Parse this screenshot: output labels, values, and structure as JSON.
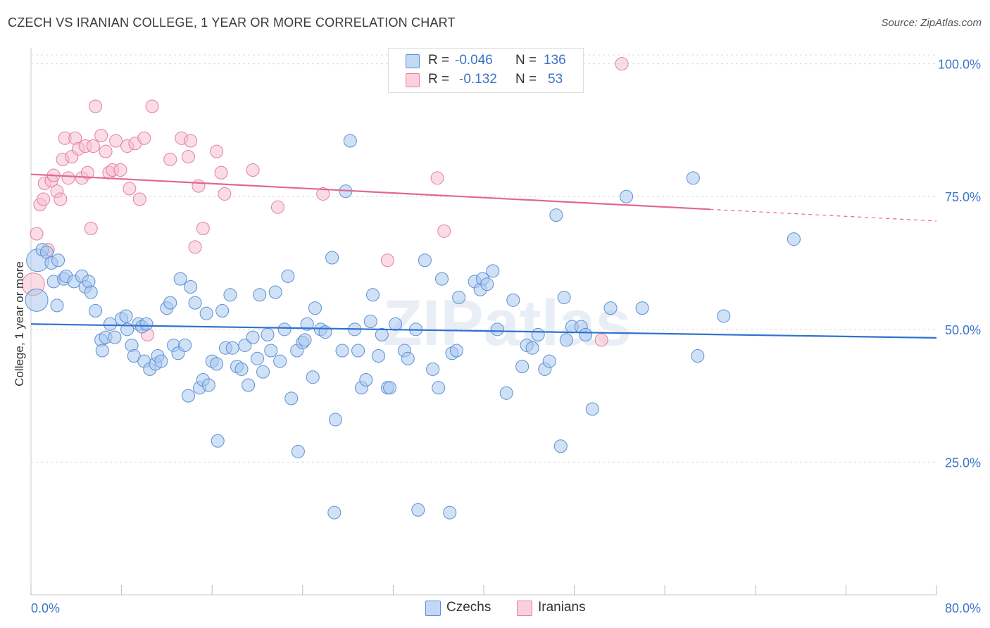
{
  "title": "CZECH VS IRANIAN COLLEGE, 1 YEAR OR MORE CORRELATION CHART",
  "source": "Source: ZipAtlas.com",
  "watermark": "ZIPatlas",
  "legend": {
    "rows": [
      {
        "r_label": "R =",
        "r_value": "-0.046",
        "n_label": "N =",
        "n_value": "136"
      },
      {
        "r_label": "R =",
        "r_value": "-0.132",
        "n_label": "N =",
        "n_value": "53"
      }
    ]
  },
  "colors": {
    "czech_fill": "#aac8ef",
    "czech_stroke": "#5a8fd6",
    "czech_line": "#2f72d0",
    "iran_fill": "#f6bfd0",
    "iran_stroke": "#e77ea0",
    "iran_line": "#e26890",
    "tick_text": "#3b74c7",
    "grid": "#d9d9d9"
  },
  "chart_data": {
    "type": "scatter",
    "xlabel": "",
    "ylabel": "College, 1 year or more",
    "xlim": [
      0,
      80
    ],
    "ylim": [
      0,
      103
    ],
    "x_tick_labels": [
      "0.0%",
      "80.0%"
    ],
    "y_ticks": [
      25,
      50,
      75,
      100
    ],
    "y_tick_labels": [
      "25.0%",
      "50.0%",
      "75.0%",
      "100.0%"
    ],
    "grid": "horizontal dashed",
    "legend_position": "top-center",
    "series": [
      {
        "name": "Czechs",
        "n": 136,
        "r": -0.046,
        "trend": {
          "x": [
            0,
            80
          ],
          "y": [
            51.0,
            48.4
          ],
          "dashed_from": null
        },
        "points": [
          [
            0.5,
            55.5
          ],
          [
            0.6,
            63
          ],
          [
            1.0,
            65
          ],
          [
            1.4,
            64.5
          ],
          [
            1.8,
            62.5
          ],
          [
            2.0,
            59
          ],
          [
            2.4,
            63
          ],
          [
            2.9,
            59.5
          ],
          [
            3.1,
            60
          ],
          [
            2.3,
            54.5
          ],
          [
            3.8,
            59
          ],
          [
            4.5,
            60
          ],
          [
            4.8,
            58
          ],
          [
            5.1,
            59
          ],
          [
            5.3,
            57
          ],
          [
            5.7,
            53.5
          ],
          [
            6.2,
            48
          ],
          [
            6.3,
            46
          ],
          [
            6.6,
            48.5
          ],
          [
            7.0,
            51
          ],
          [
            7.4,
            48.5
          ],
          [
            8.0,
            52
          ],
          [
            8.4,
            52.5
          ],
          [
            8.5,
            50
          ],
          [
            8.9,
            47
          ],
          [
            9.1,
            45
          ],
          [
            9.5,
            51
          ],
          [
            9.8,
            50.5
          ],
          [
            10.0,
            44
          ],
          [
            10.2,
            51
          ],
          [
            10.5,
            42.5
          ],
          [
            11.0,
            43.5
          ],
          [
            11.2,
            45
          ],
          [
            11.5,
            44
          ],
          [
            12.0,
            54
          ],
          [
            12.3,
            55
          ],
          [
            12.6,
            47
          ],
          [
            13.0,
            45.5
          ],
          [
            13.2,
            59.5
          ],
          [
            13.6,
            47
          ],
          [
            13.9,
            37.5
          ],
          [
            14.1,
            58
          ],
          [
            14.5,
            55
          ],
          [
            14.9,
            39
          ],
          [
            15.2,
            40.5
          ],
          [
            15.5,
            53
          ],
          [
            15.7,
            39.5
          ],
          [
            16.0,
            44
          ],
          [
            16.5,
            29
          ],
          [
            16.9,
            53.5
          ],
          [
            17.2,
            46.5
          ],
          [
            17.6,
            56.5
          ],
          [
            17.8,
            46.5
          ],
          [
            18.2,
            43
          ],
          [
            18.6,
            42.5
          ],
          [
            18.9,
            47
          ],
          [
            19.2,
            39.5
          ],
          [
            19.6,
            48.5
          ],
          [
            20.2,
            56.5
          ],
          [
            20.5,
            42
          ],
          [
            20.9,
            49
          ],
          [
            21.2,
            46
          ],
          [
            21.6,
            57
          ],
          [
            22.0,
            44
          ],
          [
            22.4,
            50
          ],
          [
            22.7,
            60
          ],
          [
            23.0,
            37
          ],
          [
            23.5,
            46
          ],
          [
            24.0,
            47.5
          ],
          [
            24.4,
            51
          ],
          [
            24.9,
            41
          ],
          [
            25.1,
            54
          ],
          [
            25.6,
            50
          ],
          [
            26.0,
            49.5
          ],
          [
            26.6,
            63.5
          ],
          [
            26.9,
            33
          ],
          [
            27.5,
            46
          ],
          [
            27.8,
            76
          ],
          [
            28.2,
            85.5
          ],
          [
            28.6,
            50
          ],
          [
            28.9,
            46
          ],
          [
            29.2,
            39
          ],
          [
            29.6,
            40.5
          ],
          [
            30.2,
            56.5
          ],
          [
            30.7,
            45
          ],
          [
            31.0,
            49
          ],
          [
            31.5,
            39
          ],
          [
            31.7,
            39
          ],
          [
            32.2,
            51
          ],
          [
            33.0,
            46
          ],
          [
            33.3,
            44.5
          ],
          [
            34.0,
            50
          ],
          [
            34.8,
            63
          ],
          [
            34.2,
            16
          ],
          [
            35.5,
            42.5
          ],
          [
            36.0,
            39
          ],
          [
            36.3,
            59.5
          ],
          [
            37.2,
            45.5
          ],
          [
            37.6,
            46
          ],
          [
            39.2,
            59
          ],
          [
            39.7,
            57.5
          ],
          [
            39.9,
            59.5
          ],
          [
            40.3,
            58.5
          ],
          [
            40.8,
            61
          ],
          [
            41.2,
            50
          ],
          [
            42.0,
            38
          ],
          [
            42.6,
            55.5
          ],
          [
            43.4,
            43
          ],
          [
            43.8,
            47
          ],
          [
            44.3,
            46.5
          ],
          [
            44.8,
            49
          ],
          [
            45.4,
            42.5
          ],
          [
            45.8,
            44
          ],
          [
            46.4,
            71.5
          ],
          [
            46.8,
            28
          ],
          [
            47.1,
            56
          ],
          [
            47.8,
            50.5
          ],
          [
            48.6,
            50.5
          ],
          [
            49.0,
            49
          ],
          [
            49.6,
            35
          ],
          [
            51.2,
            54
          ],
          [
            52.6,
            75
          ],
          [
            54.0,
            54
          ],
          [
            58.5,
            78.5
          ],
          [
            58.9,
            45
          ],
          [
            61.2,
            52.5
          ],
          [
            67.4,
            67
          ],
          [
            23.6,
            27
          ],
          [
            26.8,
            15.5
          ],
          [
            37.0,
            15.5
          ],
          [
            16.4,
            43.5
          ],
          [
            20.0,
            44.5
          ],
          [
            24.2,
            48
          ],
          [
            30.0,
            51.5
          ],
          [
            37.8,
            56
          ],
          [
            47.3,
            48
          ]
        ]
      },
      {
        "name": "Iranians",
        "n": 53,
        "r": -0.132,
        "trend": {
          "x": [
            0,
            80
          ],
          "y": [
            79.2,
            70.4
          ],
          "dashed_from": 60
        },
        "points": [
          [
            0.2,
            58.5
          ],
          [
            0.5,
            68
          ],
          [
            0.8,
            73.5
          ],
          [
            1.1,
            74.5
          ],
          [
            1.2,
            77.5
          ],
          [
            1.5,
            65
          ],
          [
            1.8,
            78
          ],
          [
            2.0,
            79
          ],
          [
            2.3,
            76
          ],
          [
            2.6,
            74.5
          ],
          [
            2.8,
            82
          ],
          [
            3.0,
            86
          ],
          [
            3.3,
            78.5
          ],
          [
            3.6,
            82.5
          ],
          [
            3.9,
            86
          ],
          [
            4.2,
            84
          ],
          [
            4.5,
            78.5
          ],
          [
            4.8,
            84.5
          ],
          [
            5.0,
            79.5
          ],
          [
            5.3,
            69
          ],
          [
            5.5,
            84.5
          ],
          [
            5.7,
            92
          ],
          [
            6.2,
            86.5
          ],
          [
            6.6,
            83.5
          ],
          [
            6.9,
            79.5
          ],
          [
            7.2,
            80
          ],
          [
            7.5,
            85.5
          ],
          [
            7.9,
            80
          ],
          [
            8.5,
            84.5
          ],
          [
            8.7,
            76.5
          ],
          [
            9.2,
            85
          ],
          [
            9.6,
            74.5
          ],
          [
            10.0,
            86
          ],
          [
            10.3,
            49
          ],
          [
            10.7,
            92
          ],
          [
            12.3,
            82
          ],
          [
            13.3,
            86
          ],
          [
            13.9,
            82.5
          ],
          [
            14.1,
            85.5
          ],
          [
            14.5,
            65.5
          ],
          [
            14.8,
            77
          ],
          [
            15.2,
            69
          ],
          [
            16.4,
            83.5
          ],
          [
            16.8,
            79.5
          ],
          [
            17.1,
            75.5
          ],
          [
            19.6,
            80
          ],
          [
            21.8,
            73
          ],
          [
            25.8,
            75.5
          ],
          [
            35.9,
            78.5
          ],
          [
            36.5,
            68.5
          ],
          [
            50.4,
            48
          ],
          [
            52.2,
            100
          ],
          [
            31.5,
            63
          ]
        ]
      }
    ]
  },
  "bottom_legend": [
    "Czechs",
    "Iranians"
  ]
}
